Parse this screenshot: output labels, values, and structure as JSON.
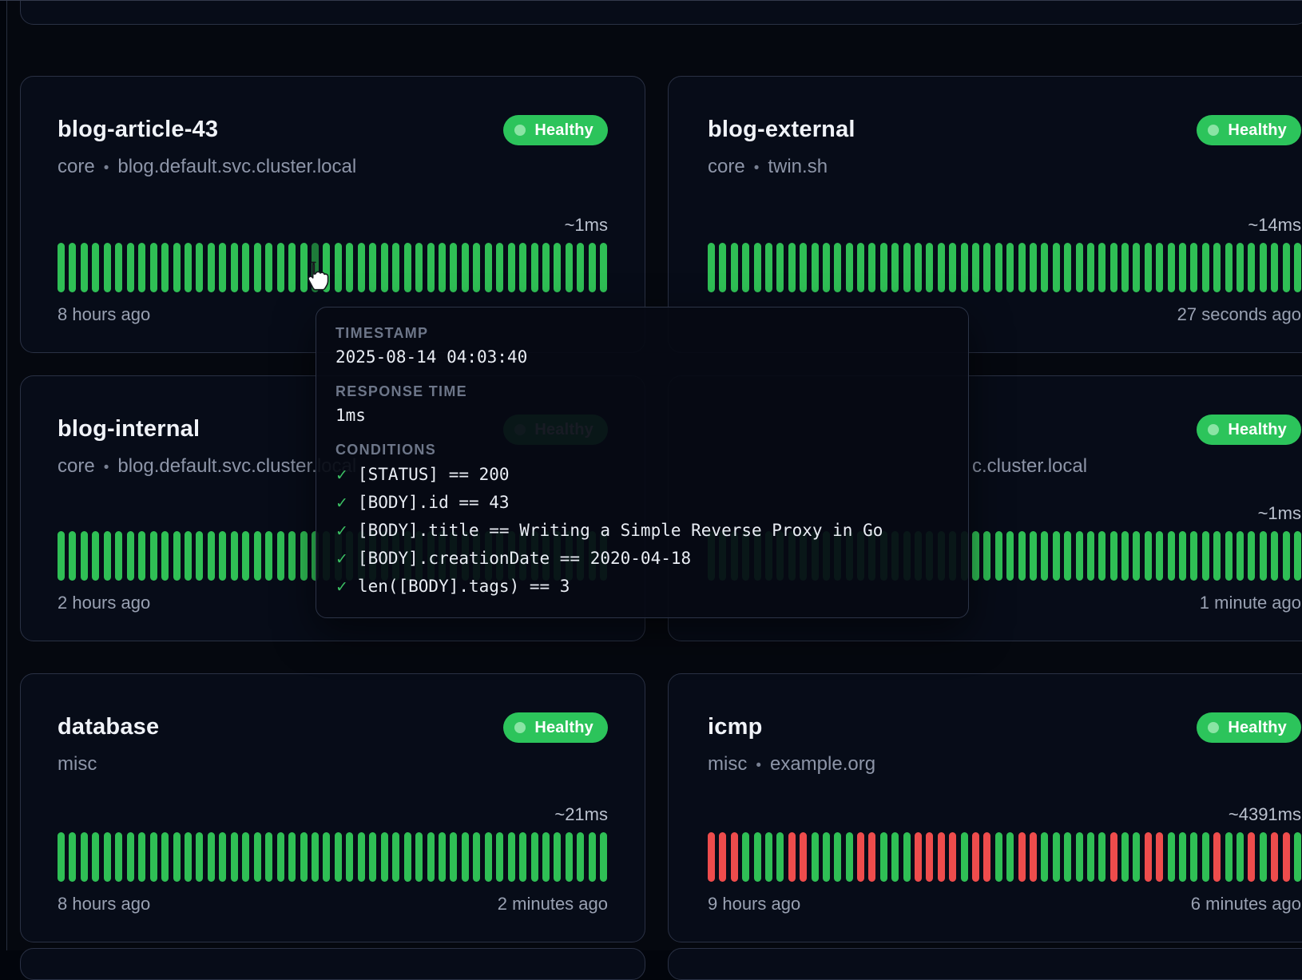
{
  "status_colors": {
    "healthy_badge": "#2cc45b",
    "bar_green": "#2fbf55",
    "bar_red": "#ee4c4c",
    "bar_hovered": "#1e7c3a"
  },
  "tooltip": {
    "timestamp_label": "TIMESTAMP",
    "timestamp_value": "2025-08-14 04:03:40",
    "response_time_label": "RESPONSE TIME",
    "response_time_value": "1ms",
    "conditions_label": "CONDITIONS",
    "check_glyph": "✓",
    "conditions": [
      "[STATUS] == 200",
      "[BODY].id == 43",
      "[BODY].title == Writing a Simple Reverse Proxy in Go",
      "[BODY].creationDate == 2020-04-18",
      "len([BODY].tags) == 3"
    ]
  },
  "cards": [
    {
      "title": "blog-article-43",
      "group": "core",
      "separator": "•",
      "host": "blog.default.svc.cluster.local",
      "status_label": "Healthy",
      "response_time": "~1ms",
      "footer_left": "8 hours ago",
      "footer_right": "",
      "bars": {
        "pattern": "GGGGGGGGGGGGGGGGGGGGGGHGGGGGGGGGGGGGGGGGGGGGGGGG"
      }
    },
    {
      "title": "blog-external",
      "group": "core",
      "separator": "•",
      "host": "twin.sh",
      "status_label": "Healthy",
      "response_time": "~14ms",
      "footer_left": "",
      "footer_right": "27 seconds ago",
      "bars": {
        "pattern": "GGGGGGGGGGGGGGGGGGGGGGGGGGGGGGGGGGGGGGGGGGGGGGGGGGGG"
      }
    },
    {
      "title": "blog-internal",
      "group": "core",
      "separator": "•",
      "host": "blog.default.svc.cluster.local",
      "status_label": "Healthy",
      "response_time": "",
      "footer_left": "2 hours ago",
      "footer_right": "",
      "bars": {
        "pattern": "GGGGGGGGGGGGGGGGGGGGGGGGGGGGGGGGGGGGGGGGGGGGGGGG"
      }
    },
    {
      "title": "",
      "group": "",
      "separator": "",
      "host": "",
      "host_visible_fragment": "c.cluster.local",
      "status_label": "Healthy",
      "response_time": "~1ms",
      "footer_left": "",
      "footer_right": "1 minute ago",
      "bars": {
        "pattern": "GGGGGGGGGGGGGGGGGGGGGGGGGGGGGGGGGGGGGGGGGGGGGGGGGGGG"
      }
    },
    {
      "title": "database",
      "group": "misc",
      "separator": "",
      "host": "",
      "status_label": "Healthy",
      "response_time": "~21ms",
      "footer_left": "8 hours ago",
      "footer_right": "2 minutes ago",
      "bars": {
        "pattern": "GGGGGGGGGGGGGGGGGGGGGGGGGGGGGGGGGGGGGGGGGGGGGGGG"
      }
    },
    {
      "title": "icmp",
      "group": "misc",
      "separator": "•",
      "host": "example.org",
      "status_label": "Healthy",
      "response_time": "~4391ms",
      "footer_left": "9 hours ago",
      "footer_right": "6 minutes ago",
      "bars": {
        "pattern": "RRRGGGGRRGGGGRRGGGRRRRGRRGGRRGGGGGGRGGRRGGGGRGGRGRRG"
      }
    }
  ]
}
